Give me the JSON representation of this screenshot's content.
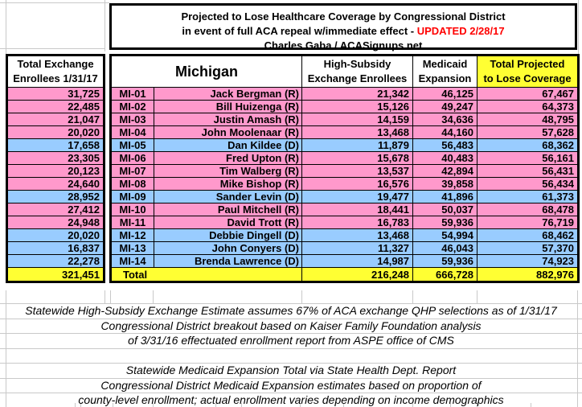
{
  "title": {
    "line1": "Projected to Lose Healthcare Coverage by Congressional District",
    "line2_prefix": "in event of full ACA repeal w/immediate effect -",
    "line2_updated": "UPDATED 2/28/17",
    "line3": "Charles Gaba / ACASignups.net"
  },
  "columns": {
    "left_header_line1": "Total Exchange",
    "left_header_line2": "Enrollees 1/31/17",
    "state": "Michigan",
    "high_subsidy_line1": "High-Subsidy",
    "high_subsidy_line2": "Exchange Enrollees",
    "medicaid_line1": "Medicaid",
    "medicaid_line2": "Expansion",
    "total_line1": "Total Projected",
    "total_line2": "to Lose Coverage"
  },
  "rows": [
    {
      "exchange": "31,725",
      "district": "MI-01",
      "rep": "Jack Bergman (R)",
      "party": "R",
      "high_subsidy": "21,342",
      "medicaid": "46,125",
      "total": "67,467"
    },
    {
      "exchange": "22,485",
      "district": "MI-02",
      "rep": "Bill Huizenga (R)",
      "party": "R",
      "high_subsidy": "15,126",
      "medicaid": "49,247",
      "total": "64,373"
    },
    {
      "exchange": "21,047",
      "district": "MI-03",
      "rep": "Justin Amash (R)",
      "party": "R",
      "high_subsidy": "14,159",
      "medicaid": "34,636",
      "total": "48,795"
    },
    {
      "exchange": "20,020",
      "district": "MI-04",
      "rep": "John Moolenaar (R)",
      "party": "R",
      "high_subsidy": "13,468",
      "medicaid": "44,160",
      "total": "57,628"
    },
    {
      "exchange": "17,658",
      "district": "MI-05",
      "rep": "Dan Kildee (D)",
      "party": "D",
      "high_subsidy": "11,879",
      "medicaid": "56,483",
      "total": "68,362"
    },
    {
      "exchange": "23,305",
      "district": "MI-06",
      "rep": "Fred Upton (R)",
      "party": "R",
      "high_subsidy": "15,678",
      "medicaid": "40,483",
      "total": "56,161"
    },
    {
      "exchange": "20,123",
      "district": "MI-07",
      "rep": "Tim Walberg (R)",
      "party": "R",
      "high_subsidy": "13,537",
      "medicaid": "42,894",
      "total": "56,431"
    },
    {
      "exchange": "24,640",
      "district": "MI-08",
      "rep": "Mike Bishop (R)",
      "party": "R",
      "high_subsidy": "16,576",
      "medicaid": "39,858",
      "total": "56,434"
    },
    {
      "exchange": "28,952",
      "district": "MI-09",
      "rep": "Sander Levin (D)",
      "party": "D",
      "high_subsidy": "19,477",
      "medicaid": "41,896",
      "total": "61,373"
    },
    {
      "exchange": "27,412",
      "district": "MI-10",
      "rep": "Paul Mitchell (R)",
      "party": "R",
      "high_subsidy": "18,441",
      "medicaid": "50,037",
      "total": "68,478"
    },
    {
      "exchange": "24,948",
      "district": "MI-11",
      "rep": "David Trott (R)",
      "party": "R",
      "high_subsidy": "16,783",
      "medicaid": "59,936",
      "total": "76,719"
    },
    {
      "exchange": "20,020",
      "district": "MI-12",
      "rep": "Debbie Dingell (D)",
      "party": "D",
      "high_subsidy": "13,468",
      "medicaid": "54,994",
      "total": "68,462"
    },
    {
      "exchange": "16,837",
      "district": "MI-13",
      "rep": "John Conyers (D)",
      "party": "D",
      "high_subsidy": "11,327",
      "medicaid": "46,043",
      "total": "57,370"
    },
    {
      "exchange": "22,278",
      "district": "MI-14",
      "rep": "Brenda Lawrence (D)",
      "party": "D",
      "high_subsidy": "14,987",
      "medicaid": "59,936",
      "total": "74,923"
    }
  ],
  "total_row": {
    "label": "Total",
    "exchange": "321,451",
    "high_subsidy": "216,248",
    "medicaid": "666,728",
    "total": "882,976"
  },
  "footnotes": {
    "block1": [
      "Statewide High-Subsidy Exchange Estimate assumes 67% of ACA exchange QHP selections as of 1/31/17",
      "Congressional District breakout based on Kaiser Family Foundation analysis",
      "of 3/31/16 effectuated enrollment report from ASPE office of CMS"
    ],
    "block2": [
      "Statewide Medicaid Expansion Total via State Health Dept. Report",
      "Congressional District Medicaid Expansion estimates based on proportion of",
      "county-level enrollment; actual enrollment varies depending on income demographics"
    ]
  },
  "colors": {
    "republican_row": "#FF99CC",
    "democrat_row": "#99CCFF",
    "total_row": "#FFFF33",
    "updated_red": "#FF0000"
  }
}
